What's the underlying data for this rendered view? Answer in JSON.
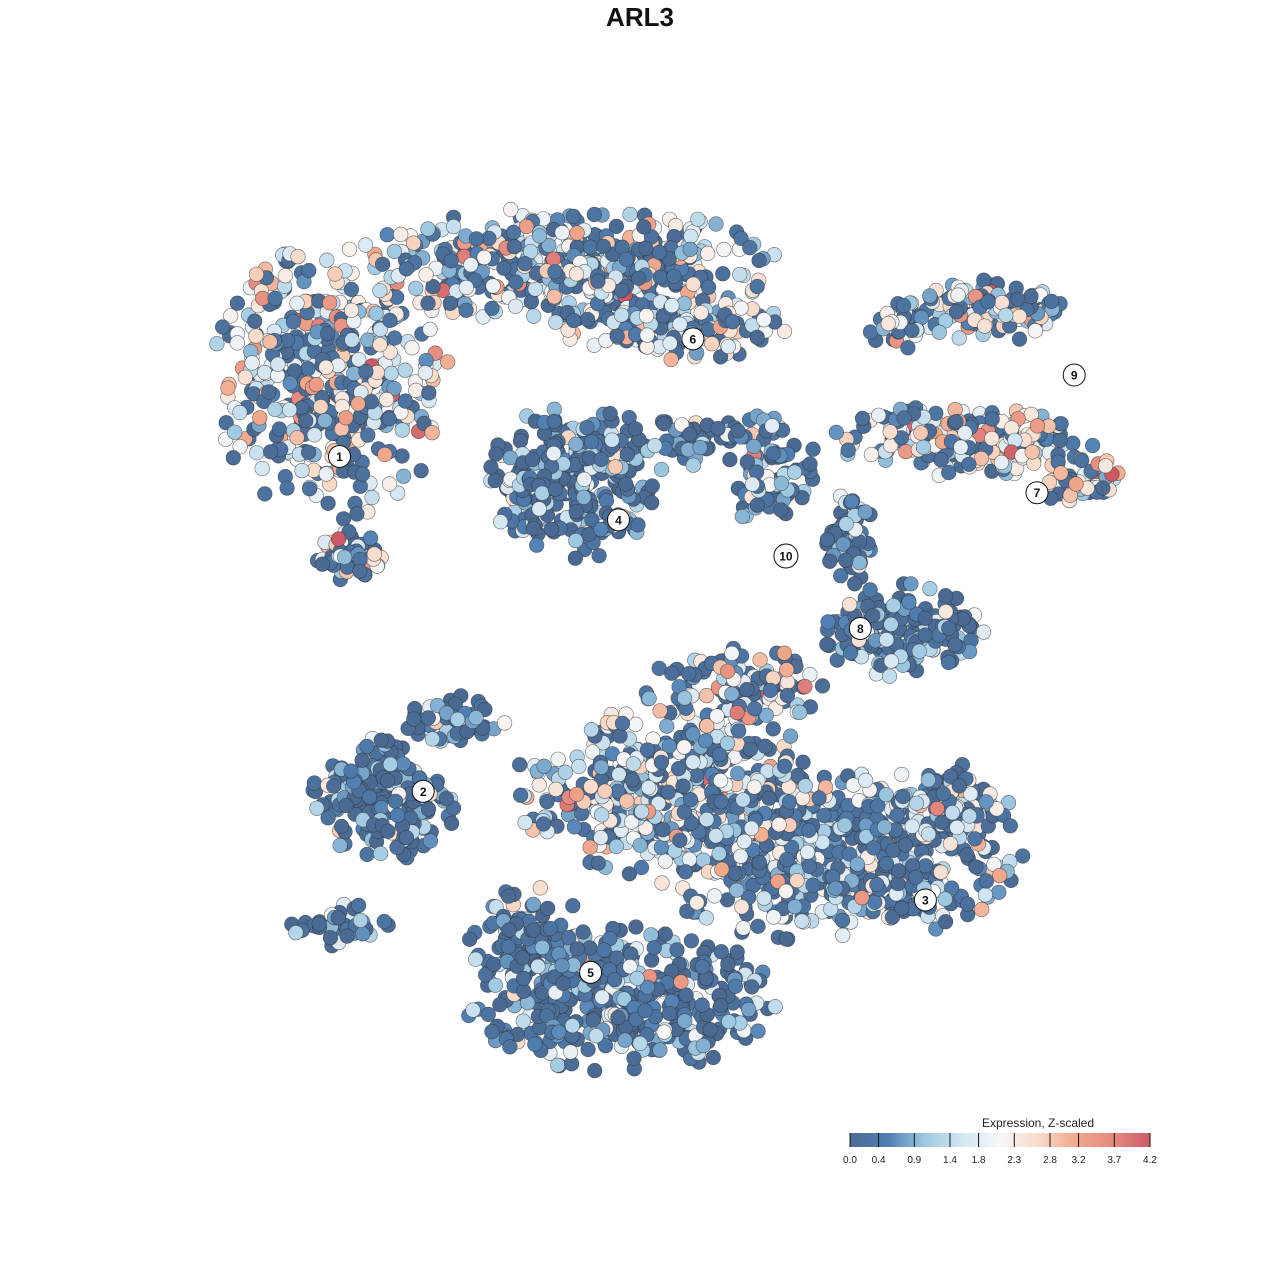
{
  "chart_data": {
    "type": "scatter",
    "title": "ARL3",
    "xlabel": "",
    "ylabel": "",
    "grid": false,
    "axes_visible": false,
    "color_scale": {
      "title": "Expression, Z-scaled",
      "min": 0.0,
      "max": 4.2,
      "ticks": [
        "0.0",
        "0.4",
        "0.9",
        "1.4",
        "1.8",
        "2.3",
        "2.8",
        "3.2",
        "3.7",
        "4.2"
      ],
      "tick_values": [
        0.0,
        0.4,
        0.9,
        1.4,
        1.8,
        2.3,
        2.8,
        3.2,
        3.7,
        4.2
      ],
      "colors": [
        "#4a6a93",
        "#4f7fb3",
        "#9ec9e2",
        "#d4e6f2",
        "#f7f7f7",
        "#f9dccb",
        "#f1a98c",
        "#e58a80",
        "#cc5a66"
      ],
      "legend_position": "bottom-right"
    },
    "clusters": [
      {
        "id": "1",
        "x": 0.15,
        "y": 0.7,
        "expr_mean": 2.0
      },
      {
        "id": "2",
        "x": 0.24,
        "y": 0.33,
        "expr_mean": 0.6
      },
      {
        "id": "3",
        "x": 0.78,
        "y": 0.21,
        "expr_mean": 1.4
      },
      {
        "id": "4",
        "x": 0.45,
        "y": 0.63,
        "expr_mean": 0.5
      },
      {
        "id": "5",
        "x": 0.42,
        "y": 0.13,
        "expr_mean": 0.7
      },
      {
        "id": "6",
        "x": 0.53,
        "y": 0.83,
        "expr_mean": 1.7
      },
      {
        "id": "7",
        "x": 0.9,
        "y": 0.66,
        "expr_mean": 2.1
      },
      {
        "id": "8",
        "x": 0.71,
        "y": 0.51,
        "expr_mean": 0.8
      },
      {
        "id": "9",
        "x": 0.94,
        "y": 0.79,
        "expr_mean": 1.6
      },
      {
        "id": "10",
        "x": 0.63,
        "y": 0.59,
        "expr_mean": 0.7
      }
    ]
  }
}
